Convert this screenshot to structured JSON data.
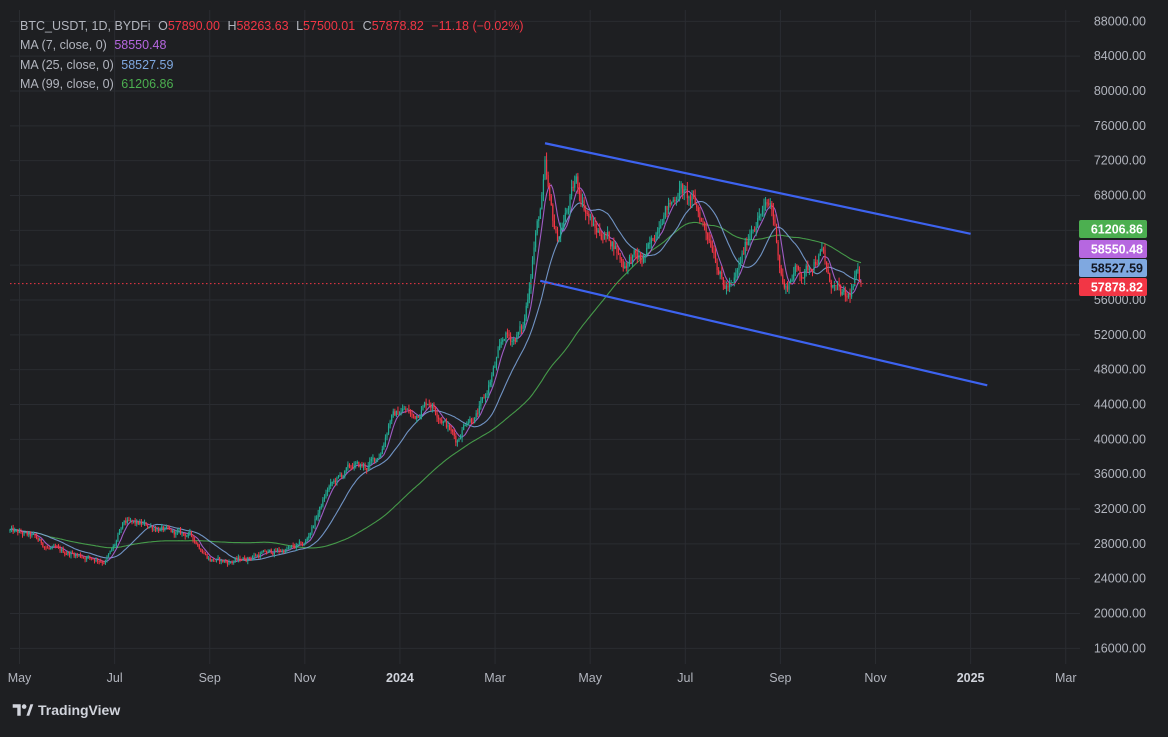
{
  "legend": {
    "symbol": "BTC_USDT, 1D, BYDFi",
    "o_label": "O",
    "o": "57890.00",
    "h_label": "H",
    "h": "58263.63",
    "l_label": "L",
    "l": "57500.01",
    "c_label": "C",
    "c": "57878.82",
    "change": "−11.18 (−0.02%)",
    "ma": [
      {
        "label": "MA (7, close, 0)",
        "value": "58550.48",
        "color": "#b667e0"
      },
      {
        "label": "MA (25, close, 0)",
        "value": "58527.59",
        "color": "#7fa8e0"
      },
      {
        "label": "MA (99, close, 0)",
        "value": "61206.86",
        "color": "#4caf50"
      }
    ]
  },
  "brand": {
    "name": "TradingView"
  },
  "chart_data": {
    "type": "candlestick",
    "yaxis": {
      "ticks": [
        "88000.00",
        "84000.00",
        "80000.00",
        "76000.00",
        "72000.00",
        "68000.00",
        "64000.00",
        "60000.00",
        "56000.00",
        "52000.00",
        "48000.00",
        "44000.00",
        "40000.00",
        "36000.00",
        "32000.00",
        "28000.00",
        "24000.00",
        "20000.00",
        "16000.00"
      ],
      "tick_values": [
        88000,
        84000,
        80000,
        76000,
        72000,
        68000,
        64000,
        60000,
        56000,
        52000,
        48000,
        44000,
        40000,
        36000,
        32000,
        28000,
        24000,
        20000,
        16000
      ],
      "range": [
        14200,
        89300
      ]
    },
    "xaxis": {
      "labels": [
        "May",
        "Jul",
        "Sep",
        "Nov",
        "2024",
        "Mar",
        "May",
        "Jul",
        "Sep",
        "Nov",
        "2025",
        "Mar"
      ],
      "label_months": [
        0,
        2,
        4,
        6,
        8,
        10,
        12,
        14,
        16,
        18,
        20,
        22
      ],
      "bold": [
        "2024",
        "2025"
      ],
      "range_months": [
        -0.2,
        22.3
      ],
      "month_zero": "May 2023"
    },
    "price_path": [
      [
        -0.2,
        29500
      ],
      [
        0.3,
        28800
      ],
      [
        0.6,
        27500
      ],
      [
        1.0,
        27000
      ],
      [
        1.4,
        26500
      ],
      [
        1.8,
        26000
      ],
      [
        2.0,
        27800
      ],
      [
        2.2,
        30500
      ],
      [
        2.6,
        30200
      ],
      [
        2.9,
        29800
      ],
      [
        3.2,
        29300
      ],
      [
        3.6,
        29000
      ],
      [
        4.0,
        26200
      ],
      [
        4.4,
        25900
      ],
      [
        4.8,
        26400
      ],
      [
        5.2,
        27000
      ],
      [
        5.6,
        27300
      ],
      [
        6.0,
        28000
      ],
      [
        6.2,
        30500
      ],
      [
        6.5,
        34500
      ],
      [
        6.8,
        36000
      ],
      [
        7.0,
        37000
      ],
      [
        7.3,
        36800
      ],
      [
        7.6,
        38500
      ],
      [
        7.8,
        42500
      ],
      [
        8.1,
        43500
      ],
      [
        8.3,
        42500
      ],
      [
        8.6,
        44500
      ],
      [
        8.8,
        43000
      ],
      [
        9.0,
        41500
      ],
      [
        9.2,
        39800
      ],
      [
        9.4,
        42300
      ],
      [
        9.6,
        42600
      ],
      [
        9.8,
        45000
      ],
      [
        10.0,
        48500
      ],
      [
        10.2,
        52000
      ],
      [
        10.4,
        51500
      ],
      [
        10.6,
        53000
      ],
      [
        10.7,
        57000
      ],
      [
        10.8,
        61500
      ],
      [
        10.9,
        65000
      ],
      [
        11.0,
        68000
      ],
      [
        11.05,
        71000
      ],
      [
        11.15,
        67000
      ],
      [
        11.3,
        63000
      ],
      [
        11.5,
        66000
      ],
      [
        11.7,
        69800
      ],
      [
        11.9,
        66500
      ],
      [
        12.1,
        64000
      ],
      [
        12.3,
        63500
      ],
      [
        12.5,
        62500
      ],
      [
        12.7,
        60000
      ],
      [
        12.9,
        61000
      ],
      [
        13.1,
        60500
      ],
      [
        13.3,
        62500
      ],
      [
        13.5,
        66000
      ],
      [
        13.7,
        67000
      ],
      [
        13.9,
        69000
      ],
      [
        14.0,
        68000
      ],
      [
        14.2,
        67000
      ],
      [
        14.4,
        64500
      ],
      [
        14.6,
        62000
      ],
      [
        14.8,
        57500
      ],
      [
        15.0,
        57500
      ],
      [
        15.2,
        61000
      ],
      [
        15.4,
        64500
      ],
      [
        15.6,
        66000
      ],
      [
        15.8,
        67000
      ],
      [
        15.9,
        64000
      ],
      [
        16.0,
        59500
      ],
      [
        16.1,
        57000
      ],
      [
        16.3,
        59500
      ],
      [
        16.5,
        59000
      ],
      [
        16.7,
        60500
      ],
      [
        16.9,
        61500
      ],
      [
        17.0,
        58500
      ],
      [
        17.2,
        57000
      ],
      [
        17.4,
        56000
      ],
      [
        17.5,
        57000
      ],
      [
        17.6,
        58900
      ],
      [
        17.7,
        57900
      ]
    ],
    "channel_upper": {
      "start": [
        11.05,
        74000
      ],
      "end": [
        20.0,
        63600
      ]
    },
    "channel_lower": {
      "start": [
        10.95,
        58200
      ],
      "end": [
        20.35,
        46200
      ]
    },
    "last_price": 57878.82,
    "series": [
      {
        "name": "MA (7, close, 0)",
        "last": 58550.48,
        "color": "#b667e0"
      },
      {
        "name": "MA (25, close, 0)",
        "last": 58527.59,
        "color": "#7fa8e0"
      },
      {
        "name": "MA (99, close, 0)",
        "last": 61206.86,
        "color": "#4caf50"
      }
    ],
    "price_labels": [
      {
        "value": "61206.86",
        "color": "#4caf50"
      },
      {
        "value": "58550.48",
        "color": "#b667e0"
      },
      {
        "value": "58527.59",
        "color": "#7fa8e0"
      },
      {
        "value": "57878.82",
        "color": "#f23645"
      }
    ],
    "colors": {
      "up": "#22ab94",
      "down": "#f23645",
      "channel": "#3d63f0",
      "grid": "#2a2c31",
      "text": "#b2b5be"
    }
  }
}
